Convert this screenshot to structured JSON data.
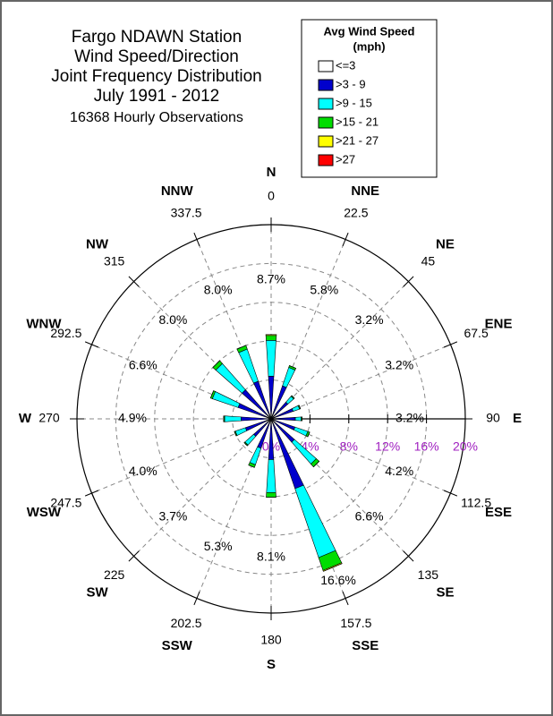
{
  "chart_data": {
    "type": "wind-rose",
    "title": [
      "Fargo NDAWN Station",
      "Wind Speed/Direction",
      "Joint Frequency Distribution",
      "July 1991 - 2012"
    ],
    "subtitle": "16368 Hourly Observations",
    "legend_title": [
      "Avg Wind Speed",
      "(mph)"
    ],
    "legend_position": "top-right",
    "directions": [
      "N",
      "NNE",
      "NE",
      "ENE",
      "E",
      "ESE",
      "SE",
      "SSE",
      "S",
      "SSW",
      "SW",
      "WSW",
      "W",
      "WNW",
      "NW",
      "NNW"
    ],
    "angle_ticks": [
      0,
      22.5,
      45,
      67.5,
      90,
      112.5,
      135,
      157.5,
      180,
      202.5,
      225,
      247.5,
      270,
      292.5,
      315,
      337.5
    ],
    "rlim": [
      0,
      20
    ],
    "rticks": [
      {
        "value": 0,
        "label": "0%"
      },
      {
        "value": 4,
        "label": "4%"
      },
      {
        "value": 8,
        "label": "8%"
      },
      {
        "value": 12,
        "label": "12%"
      },
      {
        "value": 16,
        "label": "16%"
      },
      {
        "value": 20,
        "label": "20%"
      }
    ],
    "grid": true,
    "totals": {
      "values": [
        8.7,
        5.8,
        3.2,
        3.2,
        3.2,
        4.2,
        6.6,
        16.6,
        8.1,
        5.3,
        3.7,
        4.0,
        4.9,
        6.6,
        8.0,
        8.0
      ],
      "value_labels": [
        "8.7%",
        "5.8%",
        "3.2%",
        "3.2%",
        "3.2%",
        "4.2%",
        "6.6%",
        "16.6%",
        "8.1%",
        "5.3%",
        "3.7%",
        "4.0%",
        "4.9%",
        "6.6%",
        "8.0%",
        "8.0%"
      ]
    },
    "series": [
      {
        "name": "<=3",
        "color": "#ffffff",
        "values": [
          0.2,
          0.1,
          0.1,
          0.1,
          0.1,
          0.1,
          0.2,
          0.2,
          0.2,
          0.2,
          0.2,
          0.2,
          0.2,
          0.2,
          0.2,
          0.2
        ]
      },
      {
        "name": ">3 - 9",
        "color": "#0000cc",
        "values": [
          4.2,
          3.5,
          2.2,
          2.3,
          2.4,
          2.5,
          3.0,
          7.4,
          4.0,
          3.0,
          2.2,
          2.6,
          2.9,
          3.4,
          3.8,
          3.9
        ]
      },
      {
        "name": ">9 - 15",
        "color": "#00ffff",
        "values": [
          3.7,
          2.0,
          0.8,
          0.7,
          0.6,
          1.4,
          3.0,
          7.5,
          3.4,
          1.8,
          1.2,
          1.1,
          1.7,
          2.8,
          3.6,
          3.5
        ]
      },
      {
        "name": ">15 - 21",
        "color": "#00dd00",
        "values": [
          0.5,
          0.2,
          0.1,
          0.1,
          0.1,
          0.2,
          0.4,
          1.4,
          0.5,
          0.3,
          0.1,
          0.1,
          0.1,
          0.2,
          0.4,
          0.4
        ]
      },
      {
        "name": ">21 - 27",
        "color": "#ffff00",
        "values": [
          0.1,
          0,
          0,
          0,
          0,
          0,
          0,
          0.1,
          0,
          0,
          0,
          0,
          0,
          0,
          0,
          0
        ]
      },
      {
        "name": ">27",
        "color": "#ff0000",
        "values": [
          0,
          0,
          0,
          0,
          0,
          0,
          0,
          0,
          0,
          0,
          0,
          0,
          0,
          0,
          0,
          0
        ]
      }
    ]
  }
}
